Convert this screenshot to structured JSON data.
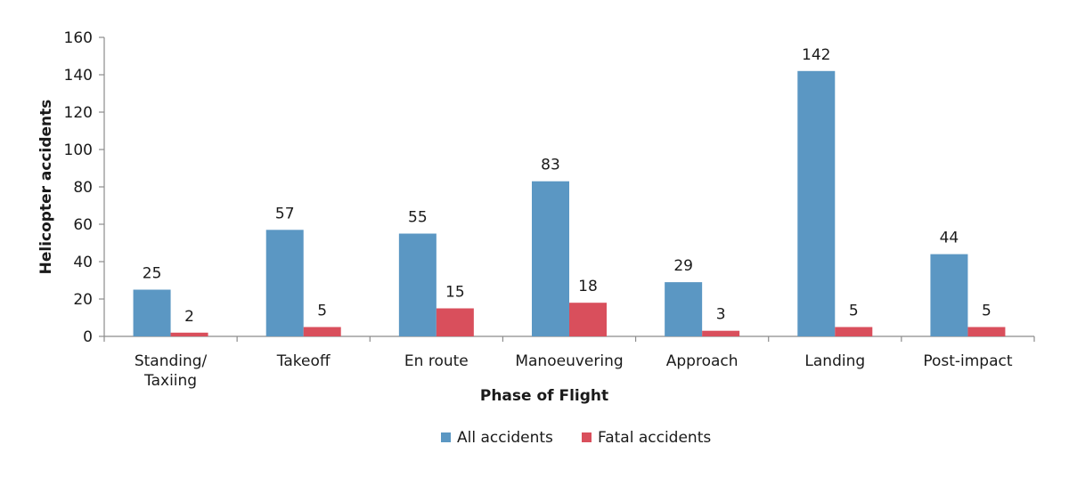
{
  "chart_data": {
    "type": "bar",
    "title": "",
    "xlabel": "Phase of Flight",
    "ylabel": "Helicopter accidents",
    "categories": [
      [
        "Standing/",
        "Taxiing"
      ],
      [
        "Takeoff"
      ],
      [
        "En route"
      ],
      [
        "Manoeuvering"
      ],
      [
        "Approach"
      ],
      [
        "Landing"
      ],
      [
        "Post-impact"
      ]
    ],
    "series": [
      {
        "name": "All accidents",
        "color": "#5b97c3",
        "values": [
          25,
          57,
          55,
          83,
          29,
          142,
          44
        ]
      },
      {
        "name": "Fatal accidents",
        "color": "#d94f5c",
        "values": [
          2,
          5,
          15,
          18,
          3,
          5,
          5
        ]
      }
    ],
    "ylim": [
      0,
      160
    ],
    "yticks": [
      0,
      20,
      40,
      60,
      80,
      100,
      120,
      140,
      160
    ],
    "grid": false,
    "legend": "bottom-center",
    "data_labels": true
  }
}
